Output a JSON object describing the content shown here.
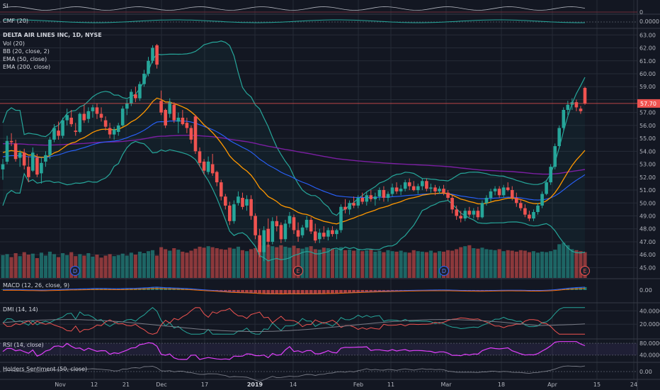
{
  "chart_data": {
    "type": "candlestick",
    "symbol_line": "DELTA AIR LINES INC, 1D, NYSE",
    "main_indicators": [
      "Vol (20)",
      "BB (20, close, 2)",
      "EMA (50, close)",
      "EMA (200, close)"
    ],
    "price_axis": {
      "ylim": [
        44.2,
        63.4
      ],
      "ticks": [
        "63.00",
        "62.00",
        "61.00",
        "60.00",
        "59.00",
        "58.00",
        "57.00",
        "56.00",
        "55.00",
        "54.00",
        "53.00",
        "52.00",
        "51.00",
        "50.00",
        "49.00",
        "48.00",
        "47.00",
        "46.00",
        "45.00"
      ]
    },
    "last_price_label": "57.70",
    "x_tick_labels": [
      "Nov",
      "12",
      "21",
      "Dec",
      "17",
      "2019",
      "14",
      "Feb",
      "11",
      "Mar",
      "18",
      "Apr",
      "15",
      "24"
    ],
    "event_markers": [
      "D",
      "E",
      "D",
      "E"
    ],
    "candles": [
      {
        "o": 52.6,
        "h": 53.4,
        "l": 51.8,
        "c": 53.0
      },
      {
        "o": 53.2,
        "h": 55.2,
        "l": 53.0,
        "c": 54.8
      },
      {
        "o": 54.8,
        "h": 55.4,
        "l": 54.4,
        "c": 54.7
      },
      {
        "o": 54.6,
        "h": 54.9,
        "l": 53.2,
        "c": 53.4
      },
      {
        "o": 53.5,
        "h": 54.1,
        "l": 52.8,
        "c": 53.9
      },
      {
        "o": 53.9,
        "h": 54.2,
        "l": 52.6,
        "c": 52.9
      },
      {
        "o": 52.8,
        "h": 53.6,
        "l": 51.6,
        "c": 52.0
      },
      {
        "o": 52.5,
        "h": 54.3,
        "l": 52.4,
        "c": 53.9
      },
      {
        "o": 53.5,
        "h": 53.8,
        "l": 52.0,
        "c": 52.2
      },
      {
        "o": 52.3,
        "h": 53.5,
        "l": 51.5,
        "c": 53.1
      },
      {
        "o": 53.2,
        "h": 54.0,
        "l": 52.8,
        "c": 53.7
      },
      {
        "o": 53.7,
        "h": 55.1,
        "l": 53.4,
        "c": 54.9
      },
      {
        "o": 54.9,
        "h": 56.1,
        "l": 54.7,
        "c": 55.8
      },
      {
        "o": 55.6,
        "h": 56.3,
        "l": 54.9,
        "c": 55.2
      },
      {
        "o": 55.2,
        "h": 56.6,
        "l": 55.0,
        "c": 56.4
      },
      {
        "o": 56.4,
        "h": 57.3,
        "l": 56.0,
        "c": 56.8
      },
      {
        "o": 56.6,
        "h": 57.2,
        "l": 55.9,
        "c": 56.1
      },
      {
        "o": 55.6,
        "h": 56.2,
        "l": 55.2,
        "c": 55.5
      },
      {
        "o": 55.5,
        "h": 57.0,
        "l": 55.4,
        "c": 56.9
      },
      {
        "o": 56.9,
        "h": 57.6,
        "l": 56.2,
        "c": 56.4
      },
      {
        "o": 56.5,
        "h": 57.4,
        "l": 56.2,
        "c": 57.1
      },
      {
        "o": 57.1,
        "h": 57.6,
        "l": 56.6,
        "c": 57.4
      },
      {
        "o": 57.4,
        "h": 57.7,
        "l": 56.5,
        "c": 56.9
      },
      {
        "o": 56.9,
        "h": 57.4,
        "l": 56.3,
        "c": 56.6
      },
      {
        "o": 56.4,
        "h": 56.7,
        "l": 55.6,
        "c": 55.9
      },
      {
        "o": 55.8,
        "h": 56.2,
        "l": 55.0,
        "c": 55.3
      },
      {
        "o": 55.3,
        "h": 55.9,
        "l": 54.9,
        "c": 55.7
      },
      {
        "o": 55.5,
        "h": 56.2,
        "l": 55.2,
        "c": 56.0
      },
      {
        "o": 56.0,
        "h": 57.5,
        "l": 55.9,
        "c": 57.3
      },
      {
        "o": 57.3,
        "h": 58.0,
        "l": 56.8,
        "c": 57.7
      },
      {
        "o": 57.7,
        "h": 58.8,
        "l": 57.5,
        "c": 58.6
      },
      {
        "o": 58.4,
        "h": 59.0,
        "l": 57.8,
        "c": 58.1
      },
      {
        "o": 58.1,
        "h": 59.4,
        "l": 57.9,
        "c": 59.2
      },
      {
        "o": 59.2,
        "h": 60.3,
        "l": 59.0,
        "c": 60.0
      },
      {
        "o": 60.0,
        "h": 61.3,
        "l": 59.8,
        "c": 61.0
      },
      {
        "o": 61.0,
        "h": 62.2,
        "l": 60.8,
        "c": 62.0
      },
      {
        "o": 62.2,
        "h": 62.3,
        "l": 60.4,
        "c": 60.7
      },
      {
        "o": 57.9,
        "h": 58.7,
        "l": 56.8,
        "c": 57.0
      },
      {
        "o": 57.2,
        "h": 57.3,
        "l": 55.8,
        "c": 56.0
      },
      {
        "o": 56.9,
        "h": 58.1,
        "l": 56.6,
        "c": 57.8
      },
      {
        "o": 57.6,
        "h": 57.8,
        "l": 56.2,
        "c": 56.4
      },
      {
        "o": 56.3,
        "h": 57.0,
        "l": 55.4,
        "c": 56.6
      },
      {
        "o": 56.6,
        "h": 57.2,
        "l": 56.0,
        "c": 56.1
      },
      {
        "o": 56.2,
        "h": 56.6,
        "l": 55.4,
        "c": 55.8
      },
      {
        "o": 55.8,
        "h": 56.0,
        "l": 54.6,
        "c": 54.9
      },
      {
        "o": 56.7,
        "h": 56.8,
        "l": 53.8,
        "c": 54.0
      },
      {
        "o": 54.0,
        "h": 54.3,
        "l": 52.8,
        "c": 53.1
      },
      {
        "o": 53.2,
        "h": 53.4,
        "l": 52.2,
        "c": 52.5
      },
      {
        "o": 52.4,
        "h": 53.6,
        "l": 52.2,
        "c": 53.2
      },
      {
        "o": 53.0,
        "h": 53.8,
        "l": 52.1,
        "c": 52.3
      },
      {
        "o": 52.4,
        "h": 52.5,
        "l": 51.3,
        "c": 51.6
      },
      {
        "o": 51.6,
        "h": 51.8,
        "l": 50.2,
        "c": 50.5
      },
      {
        "o": 50.5,
        "h": 50.7,
        "l": 49.5,
        "c": 49.8
      },
      {
        "o": 49.8,
        "h": 50.1,
        "l": 48.3,
        "c": 48.6
      },
      {
        "o": 48.6,
        "h": 50.2,
        "l": 48.4,
        "c": 49.9
      },
      {
        "o": 50.0,
        "h": 50.9,
        "l": 49.8,
        "c": 50.5
      },
      {
        "o": 50.4,
        "h": 50.8,
        "l": 49.5,
        "c": 49.7
      },
      {
        "o": 49.8,
        "h": 50.6,
        "l": 49.4,
        "c": 50.3
      },
      {
        "o": 50.3,
        "h": 50.6,
        "l": 48.7,
        "c": 49.0
      },
      {
        "o": 49.0,
        "h": 49.2,
        "l": 47.2,
        "c": 47.5
      },
      {
        "o": 47.5,
        "h": 48.0,
        "l": 45.8,
        "c": 46.2
      },
      {
        "o": 46.2,
        "h": 48.2,
        "l": 45.5,
        "c": 47.9
      },
      {
        "o": 48.0,
        "h": 48.8,
        "l": 46.6,
        "c": 47.0
      },
      {
        "o": 47.0,
        "h": 48.9,
        "l": 46.8,
        "c": 48.6
      },
      {
        "o": 48.6,
        "h": 49.0,
        "l": 47.8,
        "c": 48.2
      },
      {
        "o": 48.3,
        "h": 48.5,
        "l": 46.9,
        "c": 47.2
      },
      {
        "o": 47.2,
        "h": 48.7,
        "l": 47.0,
        "c": 48.4
      },
      {
        "o": 48.4,
        "h": 49.3,
        "l": 48.1,
        "c": 49.0
      },
      {
        "o": 48.9,
        "h": 49.1,
        "l": 47.6,
        "c": 47.9
      },
      {
        "o": 47.9,
        "h": 48.5,
        "l": 47.0,
        "c": 47.4
      },
      {
        "o": 47.5,
        "h": 48.3,
        "l": 47.3,
        "c": 48.1
      },
      {
        "o": 48.1,
        "h": 49.0,
        "l": 47.9,
        "c": 48.7
      },
      {
        "o": 48.7,
        "h": 48.9,
        "l": 47.6,
        "c": 47.8
      },
      {
        "o": 47.8,
        "h": 48.4,
        "l": 46.9,
        "c": 47.1
      },
      {
        "o": 47.2,
        "h": 48.0,
        "l": 46.9,
        "c": 47.7
      },
      {
        "o": 47.7,
        "h": 48.2,
        "l": 47.2,
        "c": 47.4
      },
      {
        "o": 47.4,
        "h": 48.1,
        "l": 47.1,
        "c": 47.9
      },
      {
        "o": 47.9,
        "h": 48.2,
        "l": 47.4,
        "c": 47.6
      },
      {
        "o": 47.6,
        "h": 48.0,
        "l": 47.2,
        "c": 47.9
      },
      {
        "o": 47.9,
        "h": 49.9,
        "l": 47.7,
        "c": 49.7
      },
      {
        "o": 49.7,
        "h": 50.3,
        "l": 49.2,
        "c": 49.5
      },
      {
        "o": 49.5,
        "h": 50.2,
        "l": 49.1,
        "c": 50.0
      },
      {
        "o": 50.0,
        "h": 50.5,
        "l": 49.6,
        "c": 49.8
      },
      {
        "o": 49.8,
        "h": 50.6,
        "l": 49.6,
        "c": 50.4
      },
      {
        "o": 50.4,
        "h": 50.8,
        "l": 49.9,
        "c": 50.1
      },
      {
        "o": 50.1,
        "h": 50.9,
        "l": 49.8,
        "c": 50.6
      },
      {
        "o": 50.6,
        "h": 51.0,
        "l": 50.1,
        "c": 50.3
      },
      {
        "o": 50.3,
        "h": 50.8,
        "l": 49.8,
        "c": 50.5
      },
      {
        "o": 50.5,
        "h": 51.2,
        "l": 50.2,
        "c": 51.0
      },
      {
        "o": 51.0,
        "h": 51.3,
        "l": 50.1,
        "c": 50.4
      },
      {
        "o": 50.4,
        "h": 50.9,
        "l": 50.1,
        "c": 50.7
      },
      {
        "o": 50.7,
        "h": 51.5,
        "l": 50.5,
        "c": 51.2
      },
      {
        "o": 51.2,
        "h": 51.6,
        "l": 50.7,
        "c": 50.9
      },
      {
        "o": 50.9,
        "h": 51.4,
        "l": 50.6,
        "c": 51.1
      },
      {
        "o": 51.1,
        "h": 51.8,
        "l": 50.9,
        "c": 51.6
      },
      {
        "o": 51.6,
        "h": 51.9,
        "l": 51.0,
        "c": 51.3
      },
      {
        "o": 51.3,
        "h": 51.7,
        "l": 50.9,
        "c": 51.0
      },
      {
        "o": 51.0,
        "h": 51.5,
        "l": 50.7,
        "c": 51.3
      },
      {
        "o": 51.3,
        "h": 51.9,
        "l": 51.0,
        "c": 51.7
      },
      {
        "o": 51.7,
        "h": 51.9,
        "l": 50.9,
        "c": 51.1
      },
      {
        "o": 51.1,
        "h": 51.5,
        "l": 50.8,
        "c": 51.2
      },
      {
        "o": 51.2,
        "h": 51.4,
        "l": 50.6,
        "c": 50.9
      },
      {
        "o": 50.9,
        "h": 51.3,
        "l": 50.7,
        "c": 51.1
      },
      {
        "o": 51.1,
        "h": 51.4,
        "l": 50.6,
        "c": 50.8
      },
      {
        "o": 50.8,
        "h": 51.0,
        "l": 50.2,
        "c": 50.4
      },
      {
        "o": 50.4,
        "h": 50.6,
        "l": 49.2,
        "c": 49.5
      },
      {
        "o": 49.5,
        "h": 49.8,
        "l": 48.7,
        "c": 49.0
      },
      {
        "o": 49.0,
        "h": 49.4,
        "l": 48.5,
        "c": 48.8
      },
      {
        "o": 48.8,
        "h": 49.6,
        "l": 48.6,
        "c": 49.4
      },
      {
        "o": 49.4,
        "h": 49.7,
        "l": 48.9,
        "c": 49.1
      },
      {
        "o": 49.1,
        "h": 49.6,
        "l": 48.8,
        "c": 49.4
      },
      {
        "o": 49.4,
        "h": 49.7,
        "l": 48.7,
        "c": 48.9
      },
      {
        "o": 48.9,
        "h": 50.2,
        "l": 48.8,
        "c": 50.0
      },
      {
        "o": 50.0,
        "h": 50.6,
        "l": 49.8,
        "c": 50.4
      },
      {
        "o": 50.4,
        "h": 51.1,
        "l": 50.1,
        "c": 50.9
      },
      {
        "o": 50.9,
        "h": 51.3,
        "l": 50.6,
        "c": 51.1
      },
      {
        "o": 51.1,
        "h": 51.3,
        "l": 50.4,
        "c": 50.6
      },
      {
        "o": 50.6,
        "h": 51.4,
        "l": 50.4,
        "c": 51.2
      },
      {
        "o": 51.2,
        "h": 51.6,
        "l": 50.9,
        "c": 51.0
      },
      {
        "o": 51.0,
        "h": 51.3,
        "l": 50.2,
        "c": 50.4
      },
      {
        "o": 50.4,
        "h": 50.8,
        "l": 49.7,
        "c": 50.0
      },
      {
        "o": 50.0,
        "h": 50.3,
        "l": 49.4,
        "c": 49.6
      },
      {
        "o": 49.6,
        "h": 49.9,
        "l": 48.9,
        "c": 49.1
      },
      {
        "o": 49.1,
        "h": 49.4,
        "l": 48.6,
        "c": 48.8
      },
      {
        "o": 48.8,
        "h": 49.5,
        "l": 48.6,
        "c": 49.3
      },
      {
        "o": 49.3,
        "h": 50.0,
        "l": 49.1,
        "c": 49.8
      },
      {
        "o": 49.8,
        "h": 50.9,
        "l": 49.6,
        "c": 50.7
      },
      {
        "o": 50.7,
        "h": 51.8,
        "l": 50.6,
        "c": 51.6
      },
      {
        "o": 51.6,
        "h": 53.0,
        "l": 51.4,
        "c": 52.8
      },
      {
        "o": 52.8,
        "h": 54.6,
        "l": 52.6,
        "c": 54.4
      },
      {
        "o": 54.4,
        "h": 56.0,
        "l": 54.2,
        "c": 55.8
      },
      {
        "o": 55.8,
        "h": 57.4,
        "l": 55.6,
        "c": 57.2
      },
      {
        "o": 57.2,
        "h": 57.9,
        "l": 56.8,
        "c": 57.6
      },
      {
        "o": 57.6,
        "h": 58.1,
        "l": 57.2,
        "c": 57.8
      },
      {
        "o": 57.8,
        "h": 58.0,
        "l": 57.1,
        "c": 57.4
      },
      {
        "o": 57.3,
        "h": 57.5,
        "l": 56.9,
        "c": 57.1
      },
      {
        "o": 58.9,
        "h": 59.0,
        "l": 57.6,
        "c": 57.7
      }
    ],
    "volume": [
      46,
      48,
      42,
      50,
      44,
      52,
      47,
      49,
      40,
      51,
      45,
      53,
      48,
      42,
      50,
      46,
      52,
      44,
      48,
      45,
      50,
      43,
      47,
      41,
      45,
      48,
      44,
      46,
      49,
      45,
      51,
      47,
      53,
      50,
      54,
      56,
      45,
      62,
      58,
      55,
      60,
      57,
      53,
      51,
      55,
      59,
      63,
      61,
      64,
      62,
      60,
      58,
      57,
      61,
      59,
      63,
      56,
      54,
      58,
      60,
      66,
      65,
      67,
      64,
      62,
      66,
      63,
      61,
      65,
      60,
      59,
      62,
      64,
      58,
      57,
      61,
      60,
      59,
      58,
      62,
      56,
      57,
      55,
      58,
      54,
      56,
      57,
      53,
      55,
      52,
      56,
      54,
      53,
      55,
      52,
      51,
      56,
      54,
      53,
      52,
      55,
      51,
      54,
      53,
      56,
      55,
      58,
      62,
      64,
      66,
      60,
      59,
      61,
      58,
      57,
      56,
      58,
      54,
      56,
      55,
      53,
      56,
      55,
      52,
      54,
      51,
      53,
      52,
      54,
      57,
      68,
      71,
      66,
      58,
      56,
      54,
      52,
      55,
      53,
      56
    ],
    "panels": [
      {
        "label": "SI",
        "axis_label": "0"
      },
      {
        "label": "CMF (20)",
        "axis_label": "0.0000"
      },
      {
        "label": "MACD (12, 26, close, 9)",
        "axis_label": "0.00"
      },
      {
        "label": "DMI (14, 14)",
        "axis_labels": [
          "40.0000",
          "20.0000"
        ]
      },
      {
        "label": "RSI (14, close)",
        "axis_labels": [
          "80.0000",
          "40.0000"
        ]
      },
      {
        "label": "Holders Sentiment (50, close)",
        "axis_label": "0.00"
      }
    ],
    "colors": {
      "background": "#131722",
      "up": "#26a69a",
      "down": "#ef5350",
      "bb": "#26a69a",
      "ema50": "#ff9800",
      "ema200": "#7b1fa2",
      "ema200_alt": "#2962ff",
      "grid": "#262b37",
      "axis_text": "#b2b5be"
    }
  }
}
